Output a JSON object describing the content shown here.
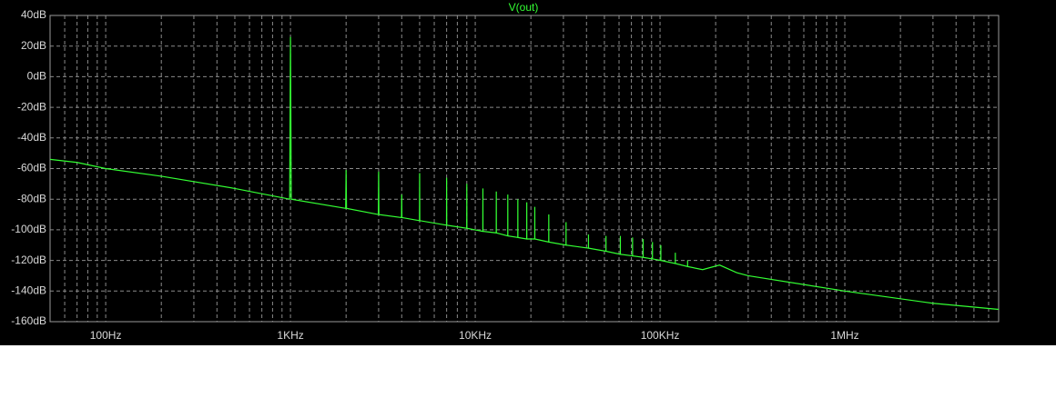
{
  "chart_data": {
    "type": "line",
    "title": "V(out)",
    "xscale": "log",
    "xlim": [
      50,
      6800000
    ],
    "xticks": [
      {
        "value": 100,
        "label": "100Hz"
      },
      {
        "value": 1000,
        "label": "1KHz"
      },
      {
        "value": 10000,
        "label": "10KHz"
      },
      {
        "value": 100000,
        "label": "100KHz"
      },
      {
        "value": 1000000,
        "label": "1MHz"
      }
    ],
    "ylim": [
      -160,
      40
    ],
    "yticks": [
      {
        "value": 40,
        "label": "40dB"
      },
      {
        "value": 20,
        "label": "20dB"
      },
      {
        "value": 0,
        "label": "0dB"
      },
      {
        "value": -20,
        "label": "-20dB"
      },
      {
        "value": -40,
        "label": "-40dB"
      },
      {
        "value": -60,
        "label": "-60dB"
      },
      {
        "value": -80,
        "label": "-80dB"
      },
      {
        "value": -100,
        "label": "-100dB"
      },
      {
        "value": -120,
        "label": "-120dB"
      },
      {
        "value": -140,
        "label": "-140dB"
      },
      {
        "value": -160,
        "label": "-160dB"
      }
    ],
    "grid": true,
    "minor_grid": true,
    "background": "#000000",
    "x": [
      50,
      70,
      100,
      200,
      500,
      990,
      1000,
      1010,
      1990,
      2000,
      2010,
      2990,
      3000,
      3010,
      3990,
      4000,
      4010,
      4990,
      5000,
      5010,
      6990,
      7000,
      7010,
      8990,
      9000,
      9010,
      10990,
      11000,
      11010,
      12990,
      13000,
      13010,
      14990,
      15000,
      15010,
      16990,
      17000,
      17010,
      18990,
      19000,
      19010,
      20990,
      21000,
      21010,
      24990,
      25000,
      25010,
      30990,
      31000,
      31010,
      40990,
      41000,
      41010,
      50990,
      51000,
      51010,
      60990,
      61000,
      61010,
      70990,
      71000,
      71010,
      80990,
      81000,
      81010,
      90990,
      91000,
      91010,
      100990,
      101000,
      101010,
      120990,
      121000,
      121010,
      140990,
      141000,
      141010,
      170000,
      210000,
      260000,
      300000,
      1000000,
      3000000,
      6800000
    ],
    "series": [
      {
        "color": "#33ff33",
        "values": [
          -54,
          -56,
          -60,
          -65,
          -73,
          -80,
          26,
          -80,
          -86,
          -61,
          -86,
          -90,
          -62,
          -90,
          -92,
          -77,
          -92,
          -94,
          -63,
          -94,
          -97,
          -66,
          -97,
          -99,
          -70,
          -99,
          -101,
          -73,
          -101,
          -102,
          -75,
          -102,
          -104,
          -77,
          -104,
          -105,
          -80,
          -105,
          -106,
          -82,
          -106,
          -106,
          -85,
          -106,
          -108,
          -90,
          -108,
          -110,
          -95,
          -110,
          -112,
          -103,
          -112,
          -114,
          -104,
          -114,
          -116,
          -104,
          -116,
          -117,
          -105,
          -117,
          -118,
          -106,
          -118,
          -119,
          -108,
          -119,
          -120,
          -110,
          -120,
          -122,
          -115,
          -122,
          -124,
          -120,
          -124,
          -126,
          -123,
          -128,
          -130,
          -140,
          -148,
          -152
        ]
      }
    ]
  }
}
